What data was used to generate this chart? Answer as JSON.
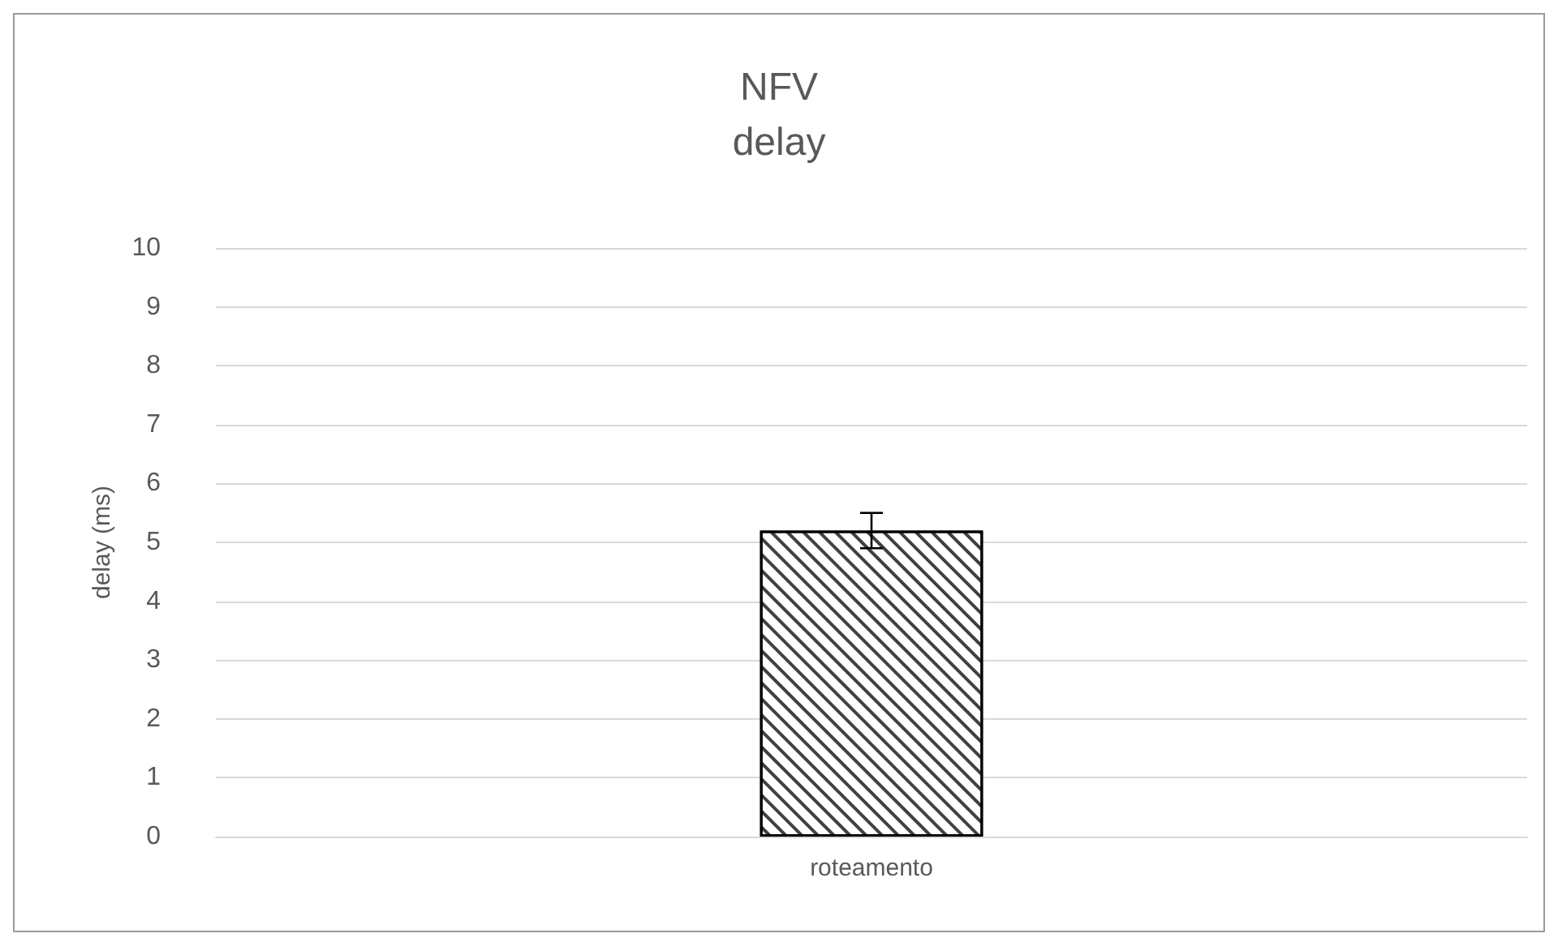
{
  "chart_data": {
    "type": "bar",
    "title": "NFV",
    "subtitle": "delay",
    "ylabel": "delay (ms)",
    "categories": [
      "roteamento"
    ],
    "values": [
      5.2
    ],
    "errors": [
      0.3
    ],
    "color": "#ffffff",
    "ylim": [
      0,
      10
    ],
    "yticks": [
      0,
      1,
      2,
      3,
      4,
      5,
      6,
      7,
      8,
      9,
      10
    ],
    "grid": "y"
  }
}
